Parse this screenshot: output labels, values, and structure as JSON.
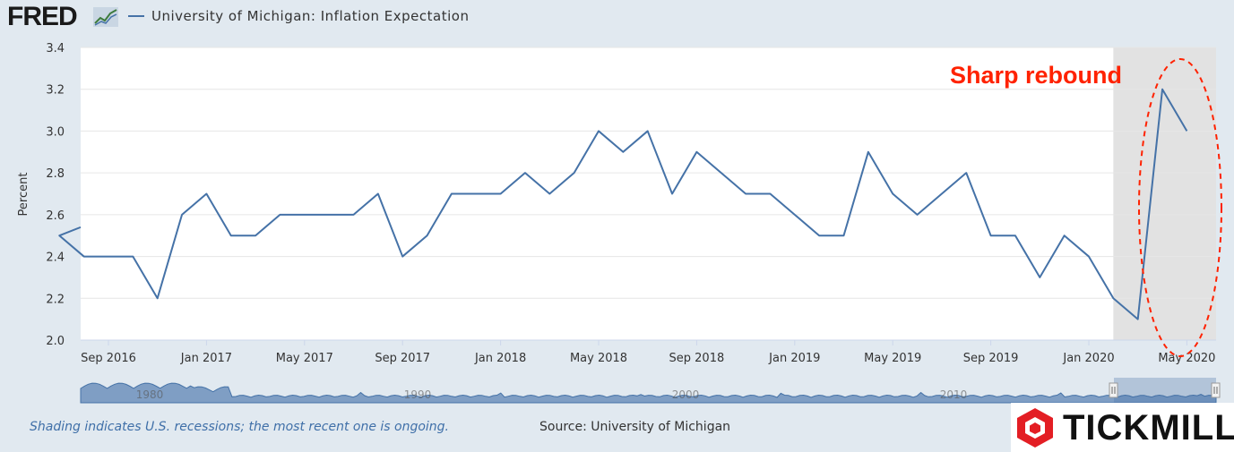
{
  "header": {
    "logo_text": "FRED",
    "logo_mark_icon": "fred-trend-lines-icon",
    "legend_label": "University of Michigan: Inflation Expectation",
    "legend_color": "#4572a7"
  },
  "chart_data": {
    "type": "line",
    "ylabel": "Percent",
    "ylim": [
      2.0,
      3.4
    ],
    "yticks": [
      "2.0",
      "2.2",
      "2.4",
      "2.6",
      "2.8",
      "3.0",
      "3.2",
      "3.4"
    ],
    "xtick_labels": [
      "Sep 2016",
      "Jan 2017",
      "May 2017",
      "Sep 2017",
      "Jan 2018",
      "May 2018",
      "Sep 2018",
      "Jan 2019",
      "May 2019",
      "Sep 2019",
      "Jan 2020",
      "May 2020"
    ],
    "grid": true,
    "series": [
      {
        "name": "University of Michigan: Inflation Expectation",
        "color": "#4572a7",
        "x": [
          "2016-07",
          "2016-08",
          "2016-09",
          "2016-10",
          "2016-11",
          "2016-12",
          "2017-01",
          "2017-02",
          "2017-03",
          "2017-04",
          "2017-05",
          "2017-06",
          "2017-07",
          "2017-08",
          "2017-09",
          "2017-10",
          "2017-11",
          "2017-12",
          "2018-01",
          "2018-02",
          "2018-03",
          "2018-04",
          "2018-05",
          "2018-06",
          "2018-07",
          "2018-08",
          "2018-09",
          "2018-10",
          "2018-11",
          "2018-12",
          "2019-01",
          "2019-02",
          "2019-03",
          "2019-04",
          "2019-05",
          "2019-06",
          "2019-07",
          "2019-08",
          "2019-09",
          "2019-10",
          "2019-11",
          "2019-12",
          "2020-01",
          "2020-02",
          "2020-03",
          "2020-04",
          "2020-05",
          "2020-06"
        ],
        "values": [
          2.5,
          2.4,
          2.4,
          2.4,
          2.2,
          2.6,
          2.7,
          2.5,
          2.5,
          2.6,
          2.6,
          2.6,
          2.6,
          2.7,
          2.4,
          2.5,
          2.7,
          2.7,
          2.7,
          2.8,
          2.7,
          2.8,
          3.0,
          2.9,
          3.0,
          2.7,
          2.9,
          2.8,
          2.7,
          2.7,
          2.6,
          2.5,
          2.5,
          2.9,
          2.7,
          2.6,
          2.7,
          2.8,
          2.5,
          2.5,
          2.3,
          2.5,
          2.4,
          2.2,
          2.1,
          3.2,
          3.0,
          null
        ],
        "first_point_partial": 2.54
      }
    ],
    "recession_shading": {
      "start": "2020-02",
      "end": "2020-06",
      "color": "#e2e2e2"
    },
    "annotation": {
      "text": "Sharp rebound",
      "color": "#ff2200"
    },
    "navigator_labels": [
      "1980",
      "1990",
      "2000",
      "2010"
    ]
  },
  "footer": {
    "recession_note": "Shading indicates U.S. recessions; the most recent one is ongoing.",
    "source": "Source: University of Michigan"
  },
  "watermark": {
    "text": "TICKMILL",
    "icon": "tickmill-hexagon-icon",
    "color": "#e31e24"
  }
}
